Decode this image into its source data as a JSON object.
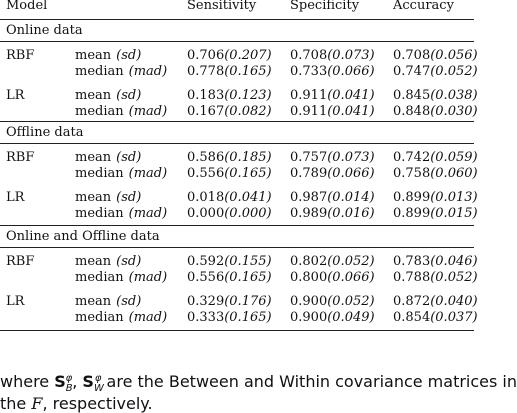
{
  "table": {
    "header": [
      "Model",
      "Sensitivity",
      "Specificity",
      "Accuracy"
    ],
    "sections": [
      {
        "title": "Online data",
        "models": [
          {
            "name": "RBF",
            "rows": [
              {
                "stat": "mean",
                "param": "(sd)",
                "cells": [
                  {
                    "value": "0.706",
                    "detail": "(0.207)"
                  },
                  {
                    "value": "0.708",
                    "detail": "(0.073)"
                  },
                  {
                    "value": "0.708",
                    "detail": "(0.056)"
                  }
                ]
              },
              {
                "stat": "median",
                "param": "(mad)",
                "cells": [
                  {
                    "value": "0.778",
                    "detail": "(0.165)"
                  },
                  {
                    "value": "0.733",
                    "detail": "(0.066)"
                  },
                  {
                    "value": "0.747",
                    "detail": "(0.052)"
                  }
                ]
              }
            ]
          },
          {
            "name": "LR",
            "rows": [
              {
                "stat": "mean",
                "param": "(sd)",
                "cells": [
                  {
                    "value": "0.183",
                    "detail": "(0.123)"
                  },
                  {
                    "value": "0.911",
                    "detail": "(0.041)"
                  },
                  {
                    "value": "0.845",
                    "detail": "(0.038)"
                  }
                ]
              },
              {
                "stat": "median",
                "param": "(mad)",
                "cells": [
                  {
                    "value": "0.167",
                    "detail": "(0.082)"
                  },
                  {
                    "value": "0.911",
                    "detail": "(0.041)"
                  },
                  {
                    "value": "0.848",
                    "detail": "(0.030)"
                  }
                ]
              }
            ]
          }
        ]
      },
      {
        "title": "Offline data",
        "models": [
          {
            "name": "RBF",
            "rows": [
              {
                "stat": "mean",
                "param": "(sd)",
                "cells": [
                  {
                    "value": "0.586",
                    "detail": "(0.185)"
                  },
                  {
                    "value": "0.757",
                    "detail": "(0.073)"
                  },
                  {
                    "value": "0.742",
                    "detail": "(0.059)"
                  }
                ]
              },
              {
                "stat": "median",
                "param": "(mad)",
                "cells": [
                  {
                    "value": "0.556",
                    "detail": "(0.165)"
                  },
                  {
                    "value": "0.789",
                    "detail": "(0.066)"
                  },
                  {
                    "value": "0.758",
                    "detail": "(0.060)"
                  }
                ]
              }
            ]
          },
          {
            "name": "LR",
            "rows": [
              {
                "stat": "mean",
                "param": "(sd)",
                "cells": [
                  {
                    "value": "0.018",
                    "detail": "(0.041)"
                  },
                  {
                    "value": "0.987",
                    "detail": "(0.014)"
                  },
                  {
                    "value": "0.899",
                    "detail": "(0.013)"
                  }
                ]
              },
              {
                "stat": "median",
                "param": "(mad)",
                "cells": [
                  {
                    "value": "0.000",
                    "detail": "(0.000)"
                  },
                  {
                    "value": "0.989",
                    "detail": "(0.016)"
                  },
                  {
                    "value": "0.899",
                    "detail": "(0.015)"
                  }
                ]
              }
            ]
          }
        ]
      },
      {
        "title": "Online and Offline data",
        "models": [
          {
            "name": "RBF",
            "rows": [
              {
                "stat": "mean",
                "param": "(sd)",
                "cells": [
                  {
                    "value": "0.592",
                    "detail": "(0.155)"
                  },
                  {
                    "value": "0.802",
                    "detail": "(0.052)"
                  },
                  {
                    "value": "0.783",
                    "detail": "(0.046)"
                  }
                ]
              },
              {
                "stat": "median",
                "param": "(mad)",
                "cells": [
                  {
                    "value": "0.556",
                    "detail": "(0.165)"
                  },
                  {
                    "value": "0.800",
                    "detail": "(0.066)"
                  },
                  {
                    "value": "0.788",
                    "detail": "(0.052)"
                  }
                ]
              }
            ]
          },
          {
            "name": "LR",
            "rows": [
              {
                "stat": "mean",
                "param": "(sd)",
                "cells": [
                  {
                    "value": "0.329",
                    "detail": "(0.176)"
                  },
                  {
                    "value": "0.900",
                    "detail": "(0.052)"
                  },
                  {
                    "value": "0.872",
                    "detail": "(0.040)"
                  }
                ]
              },
              {
                "stat": "median",
                "param": "(mad)",
                "cells": [
                  {
                    "value": "0.333",
                    "detail": "(0.165)"
                  },
                  {
                    "value": "0.900",
                    "detail": "(0.049)"
                  },
                  {
                    "value": "0.854",
                    "detail": "(0.037)"
                  }
                ]
              }
            ]
          }
        ]
      }
    ]
  },
  "text": {
    "line1": {
      "pre": "where ",
      "s1": "S",
      "s1sub": "B",
      "s1sup": "φ",
      "sep": ", ",
      "s2": "S",
      "s2sub": "W",
      "s2sup": "φ",
      "post": " are the Between and Within covariance matrices in"
    },
    "line2": {
      "pre": "the ",
      "f": "F",
      "post": ", respectively."
    }
  }
}
